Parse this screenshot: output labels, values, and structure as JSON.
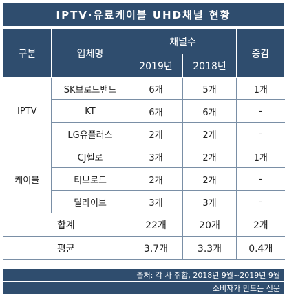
{
  "title": "IPTV·유료케이블 UHD채널 현황",
  "headers": {
    "category": "구분",
    "company": "업체명",
    "channels": "채널수",
    "year_2019": "2019년",
    "year_2018": "2018년",
    "change": "증감"
  },
  "groups": [
    {
      "name": "IPTV",
      "rows": [
        {
          "company": "SK브로드밴드",
          "y2019": "6개",
          "y2018": "5개",
          "change": "1개"
        },
        {
          "company": "KT",
          "y2019": "6개",
          "y2018": "6개",
          "change": "-"
        },
        {
          "company": "LG유플러스",
          "y2019": "2개",
          "y2018": "2개",
          "change": "-"
        }
      ]
    },
    {
      "name": "케이블",
      "rows": [
        {
          "company": "CJ헬로",
          "y2019": "3개",
          "y2018": "2개",
          "change": "1개"
        },
        {
          "company": "티브로드",
          "y2019": "2개",
          "y2018": "2개",
          "change": "-"
        },
        {
          "company": "딜라이브",
          "y2019": "3개",
          "y2018": "3개",
          "change": "-"
        }
      ]
    }
  ],
  "total": {
    "label": "합계",
    "y2019": "22개",
    "y2018": "20개",
    "change": "2개"
  },
  "average": {
    "label": "평균",
    "y2019": "3.7개",
    "y2018": "3.3개",
    "change": "0.4개"
  },
  "source": "출처: 각 사 취합, 2018년 9월~2019년 9월",
  "publisher": "소비자가 만드는 신문",
  "colors": {
    "header_bg": "#2f4d6e",
    "header_text": "#ffffff",
    "grid": "#7a8fa6"
  }
}
